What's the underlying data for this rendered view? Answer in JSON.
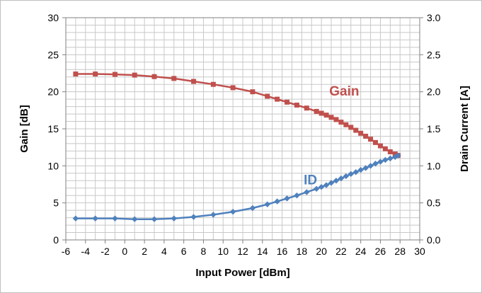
{
  "chart_data": {
    "type": "line",
    "xlabel": "Input Power [dBm]",
    "ylabel": "Gain [dB]",
    "y2label": "Drain Current [A]",
    "xlim": [
      -6,
      30
    ],
    "ylim": [
      0,
      30
    ],
    "y2lim": [
      0.0,
      3.0
    ],
    "x_ticks": [
      "-6",
      "-4",
      "-2",
      "0",
      "2",
      "4",
      "6",
      "8",
      "10",
      "12",
      "14",
      "16",
      "18",
      "20",
      "22",
      "24",
      "26",
      "28",
      "30"
    ],
    "y_ticks": [
      "0",
      "5",
      "10",
      "15",
      "20",
      "25",
      "30"
    ],
    "y2_ticks": [
      "0.0",
      "0.5",
      "1.0",
      "1.5",
      "2.0",
      "2.5",
      "3.0"
    ],
    "grid": true,
    "series": [
      {
        "name": "Gain",
        "axis": "left",
        "color": "#c0504d",
        "marker": "square",
        "x": [
          -5,
          -3,
          -1,
          1,
          3,
          5,
          7,
          9,
          11,
          13,
          14.5,
          15.5,
          16.5,
          17.5,
          18.5,
          19.5,
          20,
          20.5,
          21,
          21.5,
          22,
          22.5,
          23,
          23.5,
          24,
          24.5,
          25,
          25.5,
          26,
          26.5,
          27,
          27.5,
          27.8
        ],
        "values": [
          22.4,
          22.4,
          22.35,
          22.25,
          22.05,
          21.8,
          21.4,
          21.0,
          20.55,
          20.0,
          19.4,
          19.0,
          18.6,
          18.2,
          17.8,
          17.35,
          17.1,
          16.85,
          16.55,
          16.25,
          15.9,
          15.55,
          15.2,
          14.8,
          14.4,
          14.0,
          13.6,
          13.15,
          12.7,
          12.3,
          11.9,
          11.6,
          11.4
        ]
      },
      {
        "name": "ID",
        "axis": "right",
        "color": "#4f81bd",
        "marker": "diamond",
        "x": [
          -5,
          -3,
          -1,
          1,
          3,
          5,
          7,
          9,
          11,
          13,
          14.5,
          15.5,
          16.5,
          17.5,
          18.5,
          19.5,
          20,
          20.5,
          21,
          21.5,
          22,
          22.5,
          23,
          23.5,
          24,
          24.5,
          25,
          25.5,
          26,
          26.5,
          27,
          27.5,
          27.8
        ],
        "values": [
          0.29,
          0.29,
          0.29,
          0.28,
          0.28,
          0.29,
          0.31,
          0.34,
          0.38,
          0.43,
          0.48,
          0.52,
          0.56,
          0.6,
          0.645,
          0.69,
          0.715,
          0.74,
          0.77,
          0.8,
          0.83,
          0.86,
          0.89,
          0.915,
          0.945,
          0.97,
          1.0,
          1.03,
          1.055,
          1.08,
          1.1,
          1.12,
          1.14
        ]
      }
    ]
  }
}
